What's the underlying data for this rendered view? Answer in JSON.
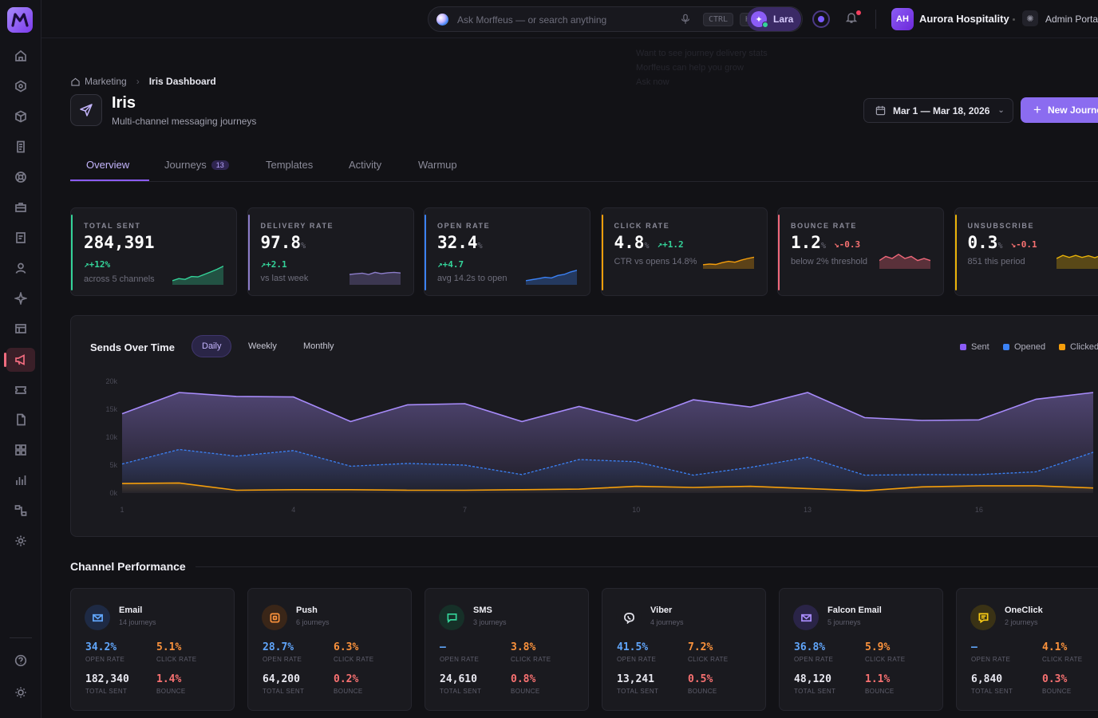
{
  "app": {
    "logo_icon": "brand-m-logo"
  },
  "topbar": {
    "search_placeholder": "Ask Morffeus — or search anything",
    "kbd_ctrl": "CTRL",
    "kbd_k": "K",
    "assistant_name": "Lara",
    "org_initials": "AH",
    "org_name": "Aurora Hospitality",
    "portal_label": "Admin Portal"
  },
  "ghost_tip": {
    "line1": "Want to see journey delivery stats",
    "line2": "Morffeus can help you grow",
    "line3": "Ask now"
  },
  "breadcrumb": {
    "parent": "Marketing",
    "current": "Iris Dashboard"
  },
  "header": {
    "title": "Iris",
    "subtitle": "Multi-channel messaging journeys",
    "date_range": "Mar 1 — Mar 18, 2026",
    "new_button": "New Journey"
  },
  "tabs": [
    {
      "label": "Overview",
      "active": true
    },
    {
      "label": "Journeys",
      "badge": "13"
    },
    {
      "label": "Templates"
    },
    {
      "label": "Activity"
    },
    {
      "label": "Warmup"
    }
  ],
  "kpis": [
    {
      "label": "TOTAL SENT",
      "value": "284,391",
      "unit": "",
      "delta": "+12%",
      "dir": "up",
      "sub": "across 5 channels",
      "color": "#34d399",
      "spark": [
        2,
        3,
        2.6,
        4,
        3.8,
        5,
        6.2,
        7.5,
        9
      ]
    },
    {
      "label": "DELIVERY RATE",
      "value": "97.8",
      "unit": "%",
      "delta": "+2.1",
      "dir": "up",
      "sub": "vs last week",
      "color": "#8b7cc8",
      "spark": [
        5,
        5.3,
        5.6,
        5,
        6,
        5.4,
        5.8,
        6,
        5.7
      ]
    },
    {
      "label": "OPEN RATE",
      "value": "32.4",
      "unit": "%",
      "delta": "+4.7",
      "dir": "up",
      "sub": "avg 14.2s to open",
      "color": "#3b82f6",
      "spark": [
        2,
        2.5,
        3,
        3.6,
        3.3,
        4.5,
        5,
        6.2,
        7
      ]
    },
    {
      "label": "CLICK RATE",
      "value": "4.8",
      "unit": "%",
      "delta": "+1.2",
      "dir": "up",
      "sub": "CTR vs opens 14.8%",
      "color": "#f59e0b",
      "spark": [
        2,
        2.3,
        2.1,
        3,
        3.6,
        3.2,
        4.2,
        5,
        5.6
      ]
    },
    {
      "label": "BOUNCE RATE",
      "value": "1.2",
      "unit": "%",
      "delta": "-0.3",
      "dir": "down",
      "sub": "below 2% threshold",
      "color": "#f0687a",
      "spark": [
        4,
        6,
        5,
        7,
        5,
        6,
        4,
        5,
        4
      ]
    },
    {
      "label": "UNSUBSCRIBE",
      "value": "0.3",
      "unit": "%",
      "delta": "-0.1",
      "dir": "down",
      "sub": "851 this period",
      "color": "#eab308",
      "spark": [
        5,
        6.5,
        5.5,
        6.5,
        5.5,
        6.3,
        5.4,
        6.5,
        6
      ]
    }
  ],
  "sends_chart": {
    "title": "Sends Over Time",
    "ranges": [
      {
        "label": "Daily",
        "active": true
      },
      {
        "label": "Weekly"
      },
      {
        "label": "Monthly"
      }
    ],
    "legend": [
      {
        "label": "Sent",
        "color": "#8b5cf6"
      },
      {
        "label": "Opened",
        "color": "#3b82f6"
      },
      {
        "label": "Clicked",
        "color": "#f59e0b"
      }
    ]
  },
  "chart_data": {
    "type": "area",
    "x": [
      1,
      2,
      3,
      4,
      5,
      6,
      7,
      8,
      9,
      10,
      11,
      12,
      13,
      14,
      15,
      16,
      17,
      18
    ],
    "xticks": [
      "1",
      "4",
      "7",
      "10",
      "13",
      "16"
    ],
    "yticks": [
      "20k",
      "15k",
      "10k",
      "5k",
      "0k"
    ],
    "ylim": [
      0,
      20000
    ],
    "series": [
      {
        "name": "Sent",
        "color": "#a78bfa",
        "values": [
          14200,
          18000,
          17300,
          17200,
          12800,
          15800,
          16000,
          12800,
          15500,
          12900,
          16700,
          15400,
          18000,
          13500,
          13000,
          13100,
          16800,
          18000
        ]
      },
      {
        "name": "Opened",
        "color": "#3b82f6",
        "values": [
          5200,
          7800,
          6600,
          7600,
          4800,
          5300,
          5000,
          3300,
          6000,
          5600,
          3200,
          4600,
          6400,
          3200,
          3300,
          3300,
          3800,
          7300
        ]
      },
      {
        "name": "Clicked",
        "color": "#f59e0b",
        "values": [
          1700,
          1800,
          500,
          600,
          600,
          500,
          500,
          600,
          700,
          1200,
          1000,
          1200,
          800,
          400,
          1100,
          1300,
          1300,
          900
        ]
      }
    ]
  },
  "channels_title": "Channel Performance",
  "channels": [
    {
      "name": "Email",
      "journeys": "14 journeys",
      "icon": "mail-icon",
      "color": "#60a5fa",
      "bg": "#1e2a44",
      "open": "34.2%",
      "click": "5.1%",
      "sent": "182,340",
      "bounce": "1.4%"
    },
    {
      "name": "Push",
      "journeys": "6 journeys",
      "icon": "push-icon",
      "color": "#fb923c",
      "bg": "#3a2618",
      "open": "28.7%",
      "click": "6.3%",
      "sent": "64,200",
      "bounce": "0.2%"
    },
    {
      "name": "SMS",
      "journeys": "3 journeys",
      "icon": "sms-icon",
      "color": "#34d399",
      "bg": "#163028",
      "open": "—",
      "click": "3.8%",
      "sent": "24,610",
      "bounce": "0.8%"
    },
    {
      "name": "Viber",
      "journeys": "4 journeys",
      "icon": "viber-icon",
      "color": "#e2e2ea",
      "bg": "#1a1a1f",
      "open": "41.5%",
      "click": "7.2%",
      "sent": "13,241",
      "bounce": "0.5%"
    },
    {
      "name": "Falcon Email",
      "journeys": "5 journeys",
      "icon": "mail-icon",
      "color": "#a78bfa",
      "bg": "#2a2447",
      "open": "36.8%",
      "click": "5.9%",
      "sent": "48,120",
      "bounce": "1.1%"
    },
    {
      "name": "OneClick",
      "journeys": "2 journeys",
      "icon": "chat-icon",
      "color": "#facc15",
      "bg": "#3a3215",
      "open": "—",
      "click": "4.1%",
      "sent": "6,840",
      "bounce": "0.3%"
    }
  ],
  "channel_labels": {
    "open": "OPEN RATE",
    "click": "CLICK RATE",
    "sent": "TOTAL SENT",
    "bounce": "BOUNCE"
  }
}
